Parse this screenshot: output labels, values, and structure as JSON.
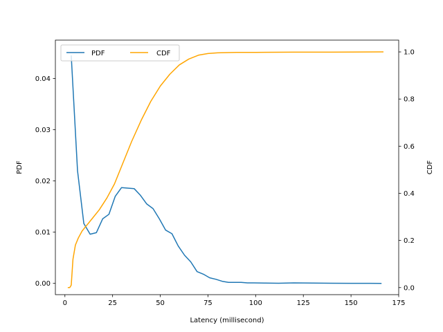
{
  "chart_data": {
    "type": "line",
    "title": "",
    "xlabel": "Latency (millisecond)",
    "ylabel_left": "PDF",
    "ylabel_right": "CDF",
    "xlim": [
      -5,
      175
    ],
    "ylim_left": [
      -0.0022,
      0.0475
    ],
    "ylim_right": [
      -0.03,
      1.05
    ],
    "xticks": [
      0,
      25,
      50,
      75,
      100,
      125,
      150,
      175
    ],
    "yticks_left": [
      0.0,
      0.01,
      0.02,
      0.03,
      0.04
    ],
    "yticks_left_labels": [
      "0.00",
      "0.01",
      "0.02",
      "0.03",
      "0.04"
    ],
    "yticks_right": [
      0.0,
      0.2,
      0.4,
      0.6,
      0.8,
      1.0
    ],
    "yticks_right_labels": [
      "0.0",
      "0.2",
      "0.4",
      "0.6",
      "0.8",
      "1.0"
    ],
    "grid": false,
    "legend": {
      "placement": "upper-left",
      "columns": 2
    },
    "series": [
      {
        "name": "PDF",
        "axis": "left",
        "color": "#1f77b4",
        "x": [
          3.3,
          6.6,
          9.9,
          13.2,
          16.5,
          19.8,
          23.1,
          26.4,
          29.7,
          33,
          36.3,
          39.6,
          42.9,
          46.2,
          49.5,
          52.8,
          56.1,
          59.4,
          62.7,
          66,
          69.3,
          72.6,
          75.9,
          79.2,
          82.5,
          85.8,
          89.1,
          92.4,
          95.7,
          99,
          105,
          112,
          120,
          130,
          140,
          150,
          160,
          166
        ],
        "y": [
          0.0445,
          0.022,
          0.0117,
          0.0096,
          0.0099,
          0.0126,
          0.0135,
          0.017,
          0.0187,
          0.0186,
          0.0185,
          0.0172,
          0.0155,
          0.0146,
          0.0126,
          0.0104,
          0.0097,
          0.0073,
          0.0055,
          0.0042,
          0.0023,
          0.0018,
          0.0011,
          0.0008,
          0.0004,
          0.0002,
          0.0002,
          0.0002,
          0.0001,
          0.0001,
          5e-05,
          3e-05,
          0.0001,
          5e-05,
          3e-05,
          2e-05,
          1e-05,
          0.0
        ]
      },
      {
        "name": "CDF",
        "axis": "right",
        "color": "#ffa500",
        "x": [
          1.5,
          2.5,
          3.3,
          4.2,
          5.5,
          7,
          9,
          11,
          14,
          18,
          22,
          26,
          30,
          35,
          40,
          45,
          50,
          55,
          60,
          65,
          70,
          75,
          80,
          90,
          100,
          120,
          140,
          167
        ],
        "y": [
          0.0,
          0.0,
          0.01,
          0.12,
          0.18,
          0.21,
          0.24,
          0.26,
          0.29,
          0.33,
          0.38,
          0.44,
          0.52,
          0.62,
          0.71,
          0.79,
          0.855,
          0.905,
          0.945,
          0.97,
          0.986,
          0.993,
          0.996,
          0.998,
          0.998,
          0.999,
          0.999,
          1.0
        ]
      }
    ]
  }
}
